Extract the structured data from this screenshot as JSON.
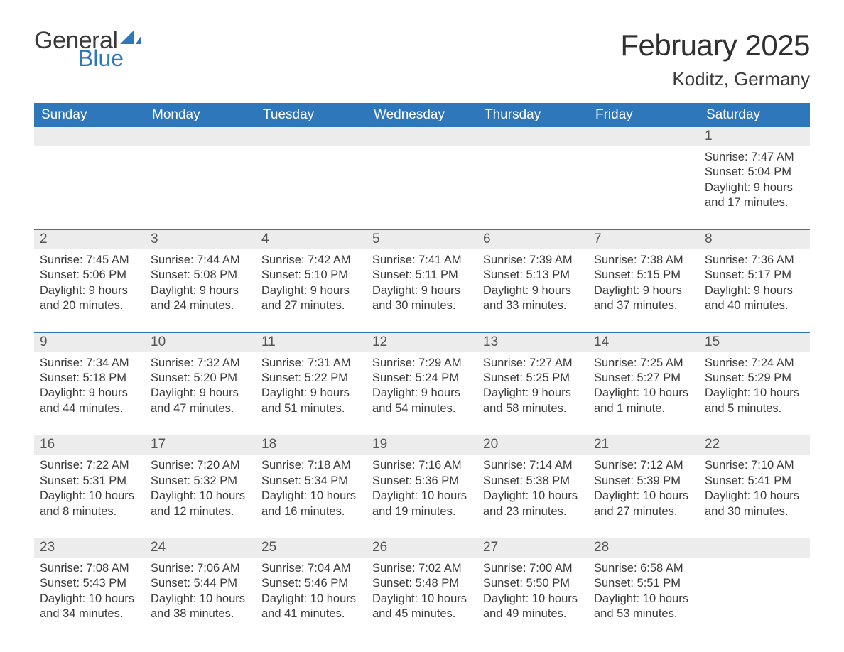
{
  "logo": {
    "word1": "General",
    "word2": "Blue",
    "sail_color": "#2e77bb",
    "text_color": "#3a3a3a"
  },
  "title": "February 2025",
  "location": "Koditz, Germany",
  "colors": {
    "header_bg": "#2e77bb",
    "header_text": "#ffffff",
    "daynum_bg": "#ececec",
    "body_text": "#3a3a3a",
    "page_bg": "#ffffff",
    "rule": "#2e77bb"
  },
  "fonts": {
    "title_size": 42,
    "location_size": 26,
    "header_size": 19,
    "daynum_size": 19,
    "detail_size": 16.5
  },
  "day_headers": [
    "Sunday",
    "Monday",
    "Tuesday",
    "Wednesday",
    "Thursday",
    "Friday",
    "Saturday"
  ],
  "weeks": [
    [
      null,
      null,
      null,
      null,
      null,
      null,
      {
        "n": "1",
        "sunrise": "7:47 AM",
        "sunset": "5:04 PM",
        "daylight": "9 hours and 17 minutes."
      }
    ],
    [
      {
        "n": "2",
        "sunrise": "7:45 AM",
        "sunset": "5:06 PM",
        "daylight": "9 hours and 20 minutes."
      },
      {
        "n": "3",
        "sunrise": "7:44 AM",
        "sunset": "5:08 PM",
        "daylight": "9 hours and 24 minutes."
      },
      {
        "n": "4",
        "sunrise": "7:42 AM",
        "sunset": "5:10 PM",
        "daylight": "9 hours and 27 minutes."
      },
      {
        "n": "5",
        "sunrise": "7:41 AM",
        "sunset": "5:11 PM",
        "daylight": "9 hours and 30 minutes."
      },
      {
        "n": "6",
        "sunrise": "7:39 AM",
        "sunset": "5:13 PM",
        "daylight": "9 hours and 33 minutes."
      },
      {
        "n": "7",
        "sunrise": "7:38 AM",
        "sunset": "5:15 PM",
        "daylight": "9 hours and 37 minutes."
      },
      {
        "n": "8",
        "sunrise": "7:36 AM",
        "sunset": "5:17 PM",
        "daylight": "9 hours and 40 minutes."
      }
    ],
    [
      {
        "n": "9",
        "sunrise": "7:34 AM",
        "sunset": "5:18 PM",
        "daylight": "9 hours and 44 minutes."
      },
      {
        "n": "10",
        "sunrise": "7:32 AM",
        "sunset": "5:20 PM",
        "daylight": "9 hours and 47 minutes."
      },
      {
        "n": "11",
        "sunrise": "7:31 AM",
        "sunset": "5:22 PM",
        "daylight": "9 hours and 51 minutes."
      },
      {
        "n": "12",
        "sunrise": "7:29 AM",
        "sunset": "5:24 PM",
        "daylight": "9 hours and 54 minutes."
      },
      {
        "n": "13",
        "sunrise": "7:27 AM",
        "sunset": "5:25 PM",
        "daylight": "9 hours and 58 minutes."
      },
      {
        "n": "14",
        "sunrise": "7:25 AM",
        "sunset": "5:27 PM",
        "daylight": "10 hours and 1 minute."
      },
      {
        "n": "15",
        "sunrise": "7:24 AM",
        "sunset": "5:29 PM",
        "daylight": "10 hours and 5 minutes."
      }
    ],
    [
      {
        "n": "16",
        "sunrise": "7:22 AM",
        "sunset": "5:31 PM",
        "daylight": "10 hours and 8 minutes."
      },
      {
        "n": "17",
        "sunrise": "7:20 AM",
        "sunset": "5:32 PM",
        "daylight": "10 hours and 12 minutes."
      },
      {
        "n": "18",
        "sunrise": "7:18 AM",
        "sunset": "5:34 PM",
        "daylight": "10 hours and 16 minutes."
      },
      {
        "n": "19",
        "sunrise": "7:16 AM",
        "sunset": "5:36 PM",
        "daylight": "10 hours and 19 minutes."
      },
      {
        "n": "20",
        "sunrise": "7:14 AM",
        "sunset": "5:38 PM",
        "daylight": "10 hours and 23 minutes."
      },
      {
        "n": "21",
        "sunrise": "7:12 AM",
        "sunset": "5:39 PM",
        "daylight": "10 hours and 27 minutes."
      },
      {
        "n": "22",
        "sunrise": "7:10 AM",
        "sunset": "5:41 PM",
        "daylight": "10 hours and 30 minutes."
      }
    ],
    [
      {
        "n": "23",
        "sunrise": "7:08 AM",
        "sunset": "5:43 PM",
        "daylight": "10 hours and 34 minutes."
      },
      {
        "n": "24",
        "sunrise": "7:06 AM",
        "sunset": "5:44 PM",
        "daylight": "10 hours and 38 minutes."
      },
      {
        "n": "25",
        "sunrise": "7:04 AM",
        "sunset": "5:46 PM",
        "daylight": "10 hours and 41 minutes."
      },
      {
        "n": "26",
        "sunrise": "7:02 AM",
        "sunset": "5:48 PM",
        "daylight": "10 hours and 45 minutes."
      },
      {
        "n": "27",
        "sunrise": "7:00 AM",
        "sunset": "5:50 PM",
        "daylight": "10 hours and 49 minutes."
      },
      {
        "n": "28",
        "sunrise": "6:58 AM",
        "sunset": "5:51 PM",
        "daylight": "10 hours and 53 minutes."
      },
      null
    ]
  ],
  "labels": {
    "sunrise": "Sunrise: ",
    "sunset": "Sunset: ",
    "daylight": "Daylight: "
  }
}
